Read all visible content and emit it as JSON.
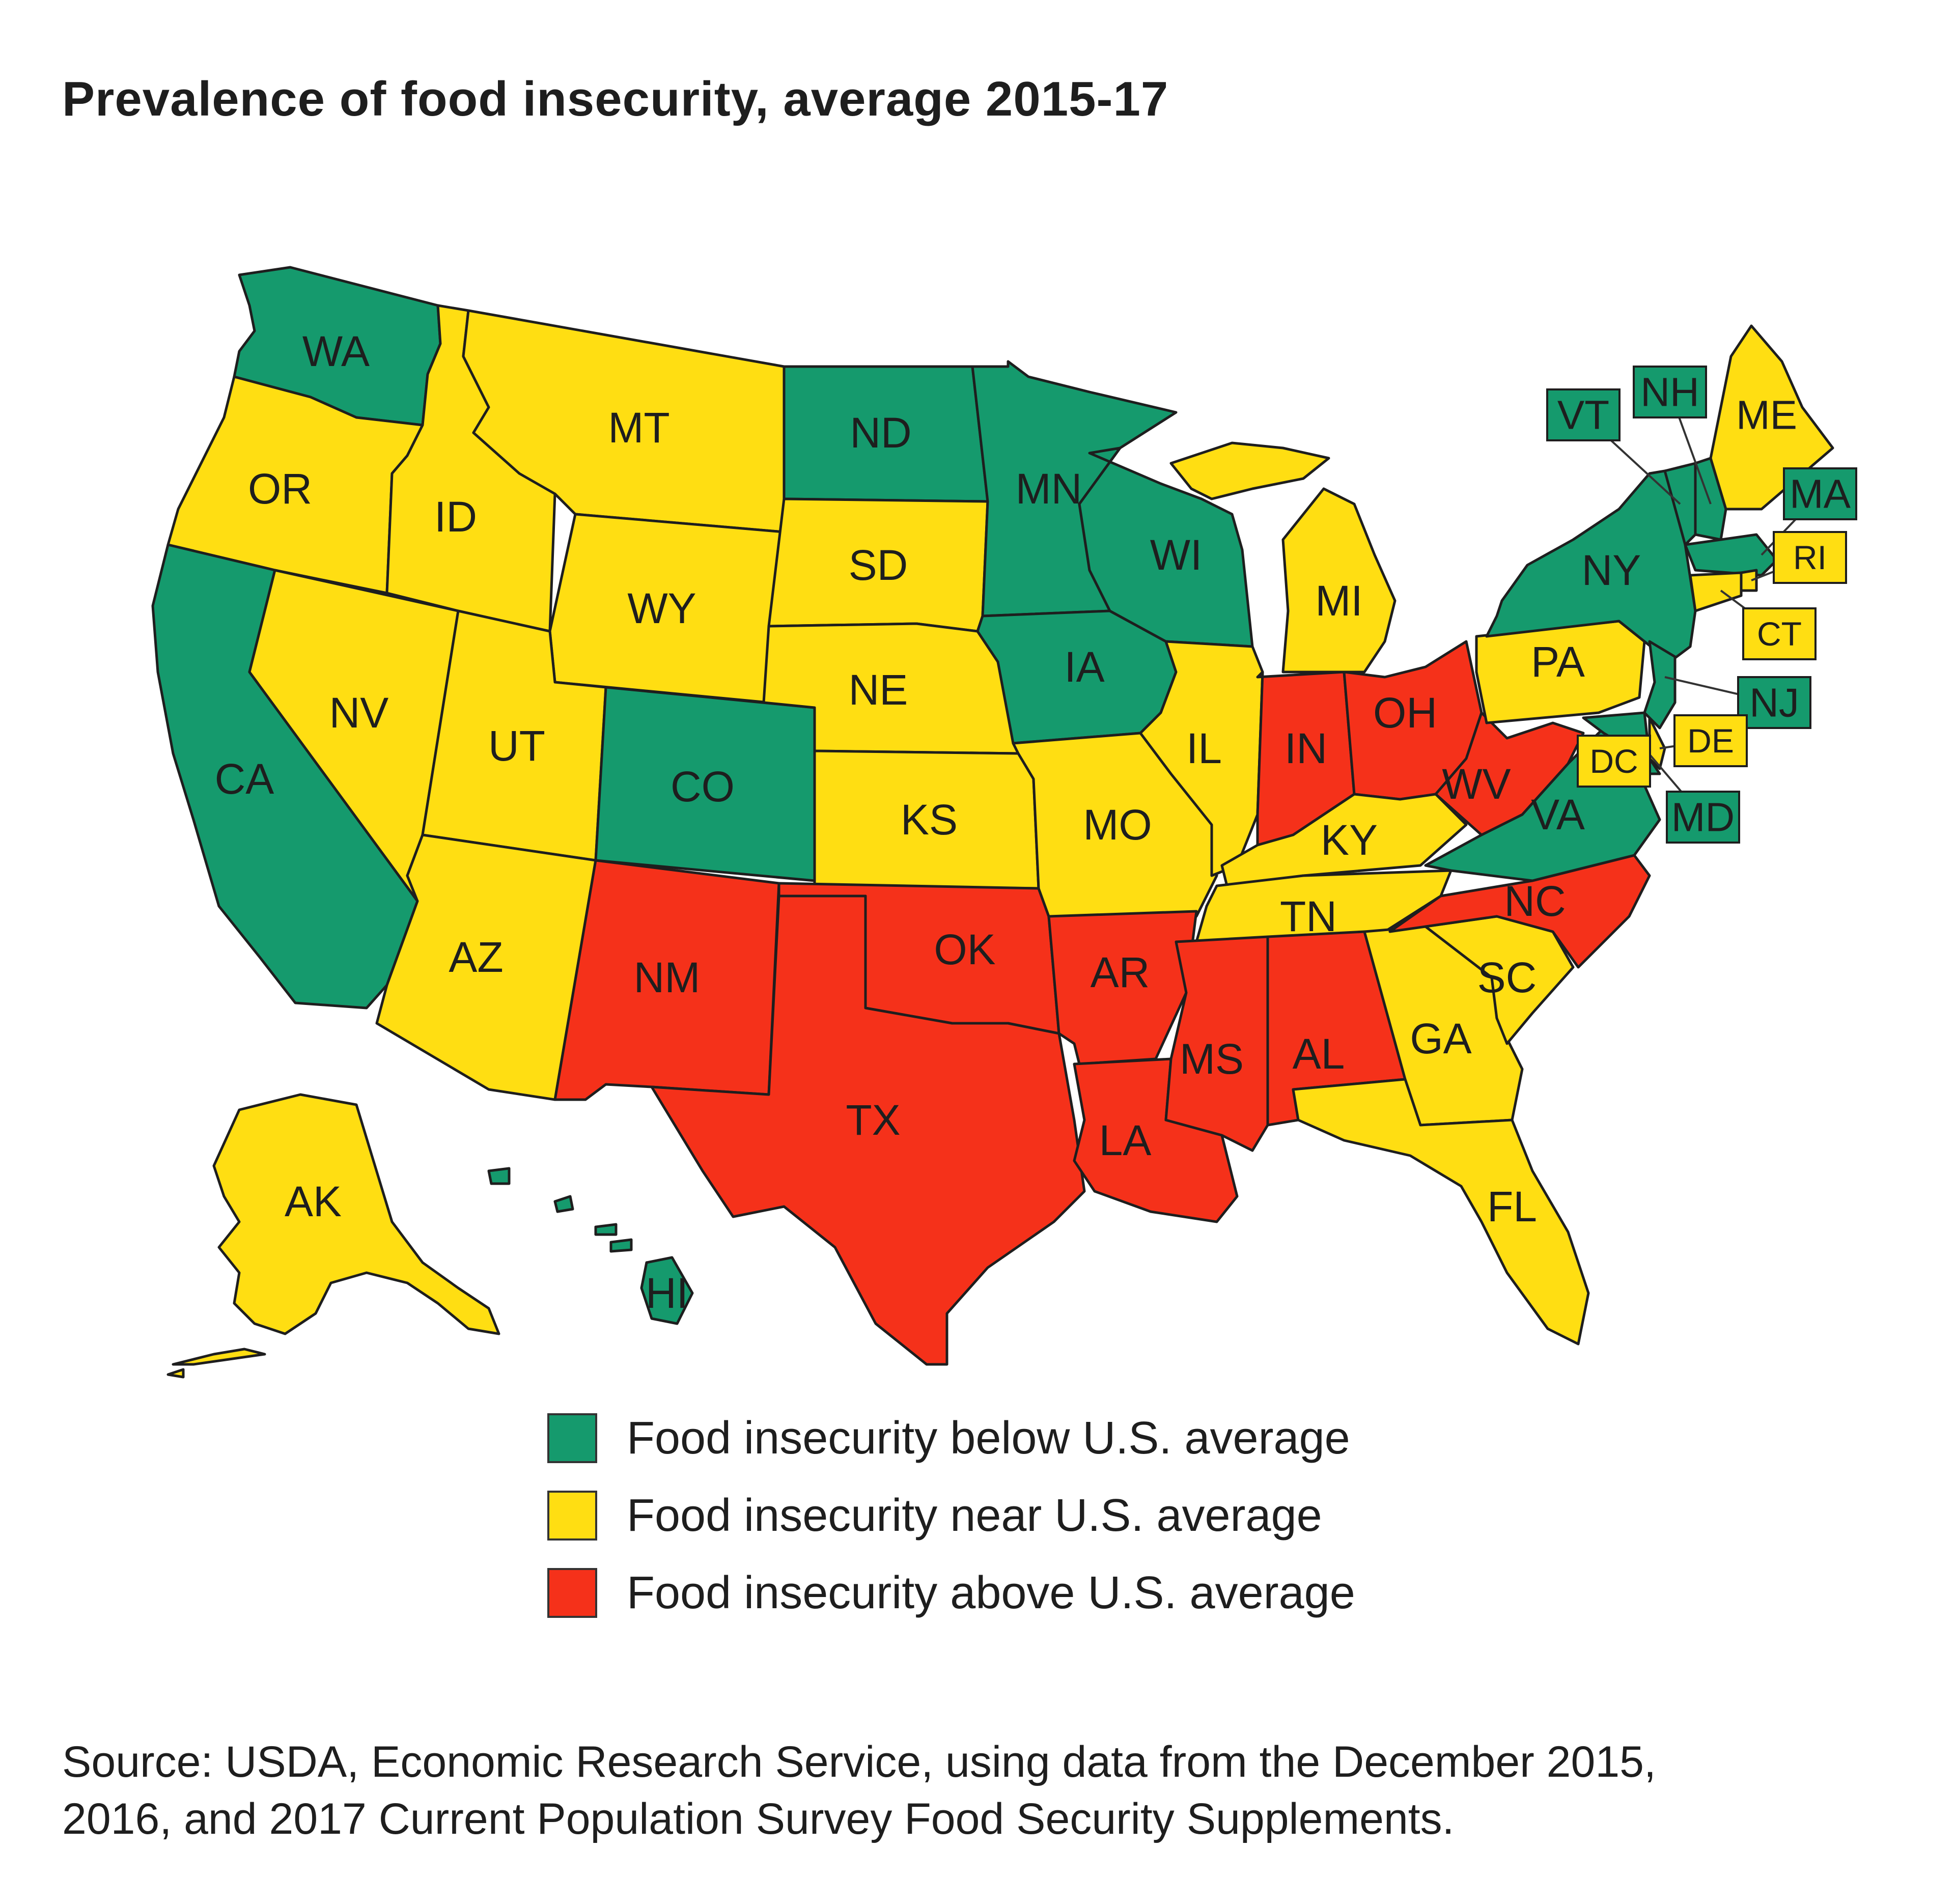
{
  "title": "Prevalence of food insecurity, average 2015-17",
  "source_line1": "Source: USDA, Economic Research Service, using data from the December 2015,",
  "source_line2": "2016, and 2017 Current Population Survey Food Security Supplements.",
  "colors": {
    "below": "#159a6d",
    "near": "#ffde12",
    "above": "#f5311a",
    "stroke": "#1e1e1e"
  },
  "legend": [
    {
      "category": "below",
      "label": "Food insecurity below U.S. average"
    },
    {
      "category": "near",
      "label": "Food insecurity near U.S. average"
    },
    {
      "category": "above",
      "label": "Food insecurity above U.S. average"
    }
  ],
  "states": [
    {
      "code": "WA",
      "category": "below"
    },
    {
      "code": "OR",
      "category": "near"
    },
    {
      "code": "CA",
      "category": "below"
    },
    {
      "code": "ID",
      "category": "near"
    },
    {
      "code": "NV",
      "category": "near"
    },
    {
      "code": "MT",
      "category": "near"
    },
    {
      "code": "WY",
      "category": "near"
    },
    {
      "code": "UT",
      "category": "near"
    },
    {
      "code": "AZ",
      "category": "near"
    },
    {
      "code": "CO",
      "category": "below"
    },
    {
      "code": "NM",
      "category": "above"
    },
    {
      "code": "ND",
      "category": "below"
    },
    {
      "code": "SD",
      "category": "near"
    },
    {
      "code": "NE",
      "category": "near"
    },
    {
      "code": "KS",
      "category": "near"
    },
    {
      "code": "OK",
      "category": "above"
    },
    {
      "code": "TX",
      "category": "above"
    },
    {
      "code": "MN",
      "category": "below"
    },
    {
      "code": "IA",
      "category": "below"
    },
    {
      "code": "MO",
      "category": "near"
    },
    {
      "code": "AR",
      "category": "above"
    },
    {
      "code": "LA",
      "category": "above"
    },
    {
      "code": "WI",
      "category": "below"
    },
    {
      "code": "IL",
      "category": "near"
    },
    {
      "code": "MI",
      "category": "near"
    },
    {
      "code": "IN",
      "category": "above"
    },
    {
      "code": "OH",
      "category": "above"
    },
    {
      "code": "KY",
      "category": "near"
    },
    {
      "code": "TN",
      "category": "near"
    },
    {
      "code": "MS",
      "category": "above"
    },
    {
      "code": "AL",
      "category": "above"
    },
    {
      "code": "GA",
      "category": "near"
    },
    {
      "code": "FL",
      "category": "near"
    },
    {
      "code": "SC",
      "category": "near"
    },
    {
      "code": "NC",
      "category": "above"
    },
    {
      "code": "VA",
      "category": "below"
    },
    {
      "code": "WV",
      "category": "above"
    },
    {
      "code": "PA",
      "category": "near"
    },
    {
      "code": "NY",
      "category": "below"
    },
    {
      "code": "VT",
      "category": "below"
    },
    {
      "code": "NH",
      "category": "below"
    },
    {
      "code": "ME",
      "category": "near"
    },
    {
      "code": "MA",
      "category": "below"
    },
    {
      "code": "RI",
      "category": "near"
    },
    {
      "code": "CT",
      "category": "near"
    },
    {
      "code": "NJ",
      "category": "below"
    },
    {
      "code": "DE",
      "category": "near"
    },
    {
      "code": "MD",
      "category": "below"
    },
    {
      "code": "DC",
      "category": "near"
    },
    {
      "code": "AK",
      "category": "near"
    },
    {
      "code": "HI",
      "category": "below"
    }
  ]
}
